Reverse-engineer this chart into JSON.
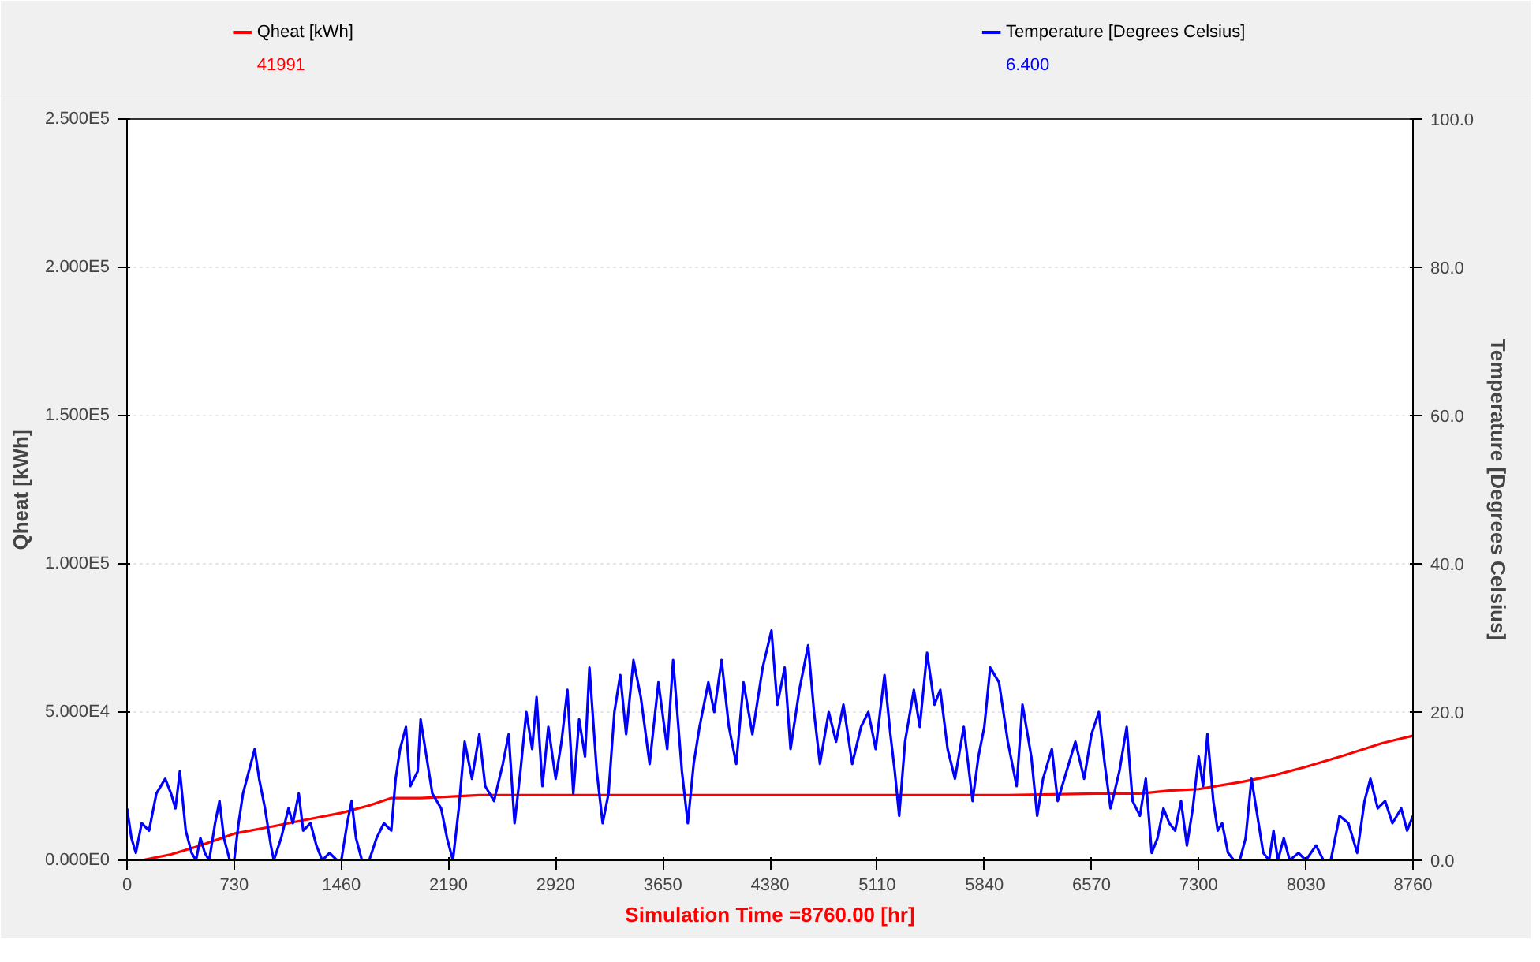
{
  "chart_data": {
    "type": "line",
    "xlabel": "Simulation Time =8760.00 [hr]",
    "ylabel": "Qheat [kWh]",
    "y2label": "Temperature [Degrees Celsius]",
    "xlim": [
      0,
      8760
    ],
    "xticks": [
      0,
      730,
      1460,
      2190,
      2920,
      3650,
      4380,
      5110,
      5840,
      6570,
      7300,
      8030,
      8760
    ],
    "ylim": [
      0,
      250000
    ],
    "yticks": [
      {
        "value": 0,
        "label": "0.000E0"
      },
      {
        "value": 50000,
        "label": "5.000E4"
      },
      {
        "value": 100000,
        "label": "1.000E5"
      },
      {
        "value": 150000,
        "label": "1.500E5"
      },
      {
        "value": 200000,
        "label": "2.000E5"
      },
      {
        "value": 250000,
        "label": "2.500E5"
      }
    ],
    "y2lim": [
      0,
      100
    ],
    "y2ticks": [
      {
        "value": 0,
        "label": "0.0"
      },
      {
        "value": 20,
        "label": "20.0"
      },
      {
        "value": 40,
        "label": "40.0"
      },
      {
        "value": 60,
        "label": "60.0"
      },
      {
        "value": 80,
        "label": "80.0"
      },
      {
        "value": 100,
        "label": "100.0"
      }
    ],
    "grid": "y",
    "legend": "top",
    "annotations": [
      "41991",
      "6.400"
    ],
    "series": [
      {
        "name": "Qheat [kWh]",
        "color": "#ff0000",
        "x": [
          0,
          100,
          300,
          500,
          730,
          1000,
          1200,
          1460,
          1650,
          1800,
          2000,
          2400,
          3000,
          4000,
          5000,
          6000,
          6600,
          6900,
          7100,
          7300,
          7600,
          7800,
          8030,
          8300,
          8550,
          8760
        ],
        "values": [
          0,
          0,
          2000,
          5000,
          9000,
          11500,
          13500,
          16000,
          18500,
          21000,
          21000,
          22000,
          22000,
          22000,
          22000,
          22000,
          22500,
          22500,
          23500,
          24000,
          26500,
          28500,
          31500,
          35500,
          39500,
          42000
        ]
      },
      {
        "name": "Temperature [Degrees Celsius]",
        "color": "#0000ff",
        "axis": "y2",
        "x": [
          0,
          30,
          60,
          100,
          150,
          200,
          260,
          300,
          330,
          360,
          380,
          400,
          440,
          470,
          500,
          530,
          560,
          600,
          630,
          660,
          700,
          730,
          760,
          790,
          830,
          870,
          900,
          940,
          980,
          1000,
          1050,
          1100,
          1130,
          1170,
          1200,
          1250,
          1290,
          1330,
          1380,
          1430,
          1460,
          1500,
          1530,
          1560,
          1600,
          1650,
          1700,
          1750,
          1800,
          1830,
          1860,
          1900,
          1930,
          1980,
          2000,
          2040,
          2080,
          2140,
          2180,
          2220,
          2260,
          2300,
          2350,
          2400,
          2440,
          2500,
          2560,
          2600,
          2640,
          2680,
          2720,
          2760,
          2790,
          2830,
          2870,
          2920,
          2960,
          3000,
          3040,
          3080,
          3120,
          3150,
          3200,
          3240,
          3280,
          3320,
          3360,
          3400,
          3450,
          3500,
          3560,
          3620,
          3680,
          3720,
          3780,
          3820,
          3860,
          3900,
          3960,
          4000,
          4050,
          4100,
          4150,
          4200,
          4260,
          4330,
          4390,
          4430,
          4480,
          4520,
          4580,
          4640,
          4680,
          4720,
          4780,
          4830,
          4880,
          4940,
          5000,
          5050,
          5100,
          5160,
          5200,
          5230,
          5260,
          5300,
          5360,
          5400,
          5450,
          5500,
          5540,
          5590,
          5640,
          5700,
          5760,
          5800,
          5840,
          5880,
          5940,
          6000,
          6060,
          6100,
          6160,
          6200,
          6240,
          6300,
          6340,
          6400,
          6460,
          6520,
          6570,
          6620,
          6660,
          6700,
          6760,
          6810,
          6850,
          6900,
          6940,
          6980,
          7020,
          7060,
          7100,
          7140,
          7180,
          7220,
          7260,
          7300,
          7330,
          7360,
          7400,
          7430,
          7460,
          7500,
          7540,
          7580,
          7620,
          7660,
          7700,
          7740,
          7780,
          7810,
          7840,
          7880,
          7920,
          7980,
          8030,
          8100,
          8150,
          8200,
          8260,
          8320,
          8380,
          8430,
          8470,
          8520,
          8570,
          8620,
          8680,
          8720,
          8760
        ],
        "values": [
          7,
          3,
          1,
          5,
          4,
          9,
          11,
          9,
          7,
          12,
          8,
          4,
          1,
          0,
          3,
          1,
          0,
          5,
          8,
          3,
          0,
          0,
          5,
          9,
          12,
          15,
          11,
          7,
          2,
          0,
          3,
          7,
          5,
          9,
          4,
          5,
          2,
          0,
          1,
          0,
          0,
          5,
          8,
          3,
          0,
          0,
          3,
          5,
          4,
          11,
          15,
          18,
          10,
          12,
          19,
          14,
          9,
          7,
          3,
          0,
          7,
          16,
          11,
          17,
          10,
          8,
          13,
          17,
          5,
          12,
          20,
          15,
          22,
          10,
          18,
          11,
          16,
          23,
          9,
          19,
          14,
          26,
          12,
          5,
          9,
          20,
          25,
          17,
          27,
          22,
          13,
          24,
          15,
          27,
          12,
          5,
          13,
          18,
          24,
          20,
          27,
          18,
          13,
          24,
          17,
          26,
          31,
          21,
          26,
          15,
          23,
          29,
          20,
          13,
          20,
          16,
          21,
          13,
          18,
          20,
          15,
          25,
          17,
          12,
          6,
          16,
          23,
          18,
          28,
          21,
          23,
          15,
          11,
          18,
          8,
          14,
          18,
          26,
          24,
          16,
          10,
          21,
          14,
          6,
          11,
          15,
          8,
          12,
          16,
          11,
          17,
          20,
          13,
          7,
          12,
          18,
          8,
          6,
          11,
          1,
          3,
          7,
          5,
          4,
          8,
          2,
          7,
          14,
          10,
          17,
          8,
          4,
          5,
          1,
          0,
          0,
          3,
          11,
          6,
          1,
          0,
          4,
          0,
          3,
          0,
          1,
          0,
          2,
          0,
          0,
          6,
          5,
          1,
          8,
          11,
          7,
          8,
          5,
          7,
          4,
          6
        ]
      }
    ]
  }
}
